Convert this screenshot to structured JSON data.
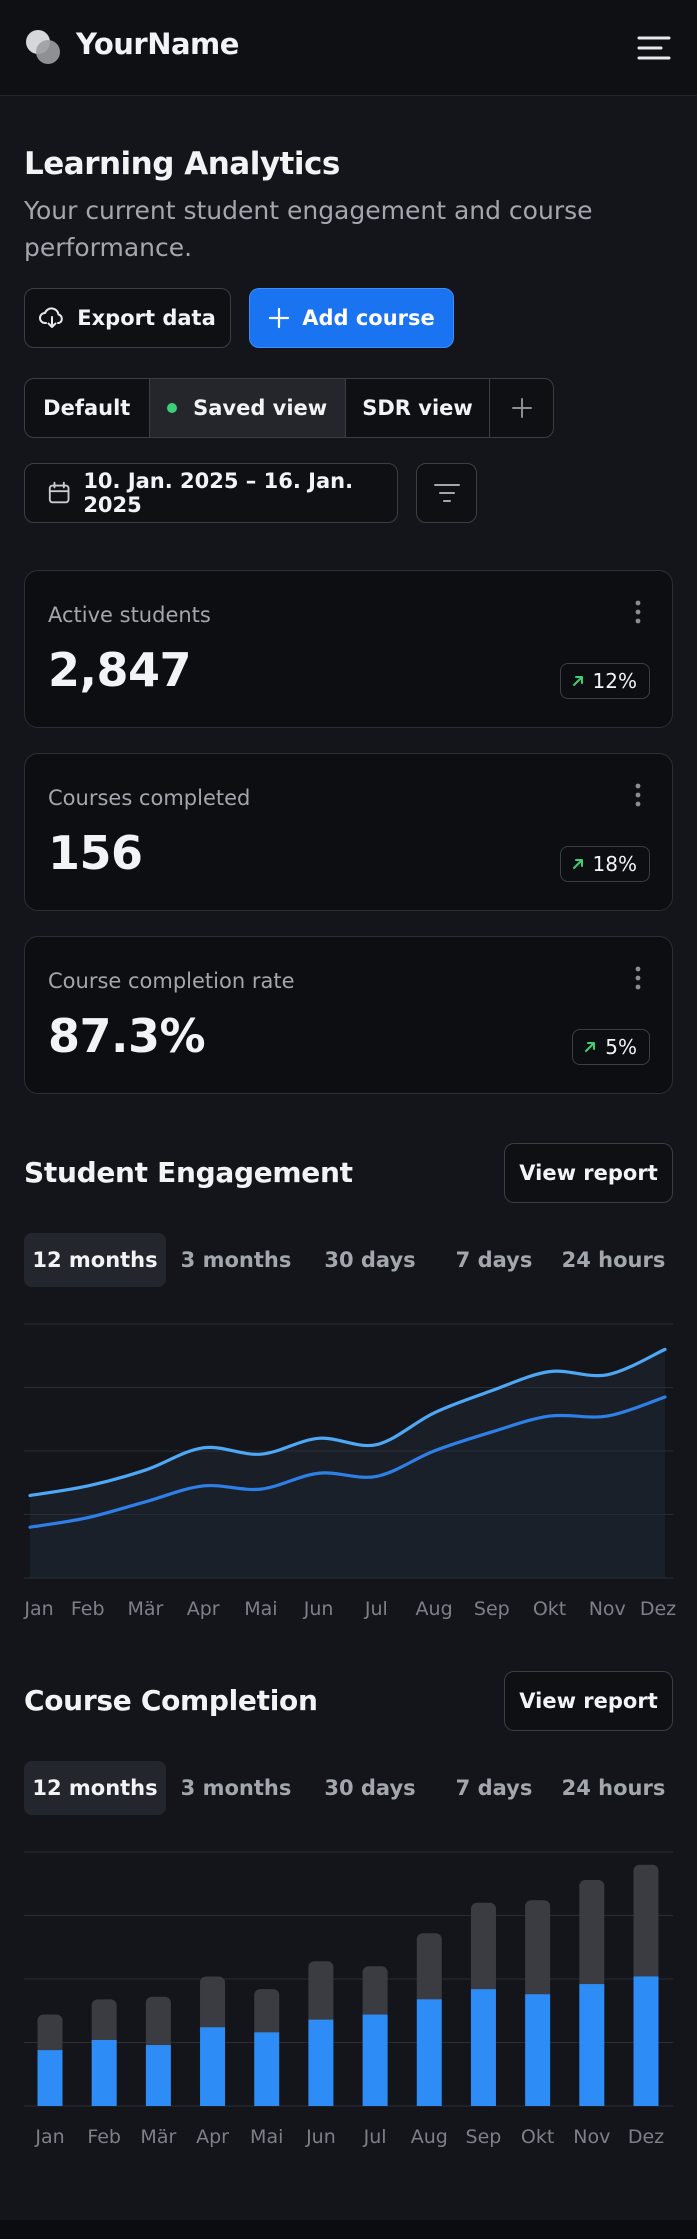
{
  "header": {
    "brand": "YourName",
    "logo_icon": "overlapping-circles-logo",
    "menu_icon": "menu-icon"
  },
  "page": {
    "title": "Learning Analytics",
    "subtitle": "Your current student engagement and course performance."
  },
  "actions": {
    "export_label": "Export data",
    "add_label": "Add course"
  },
  "views": {
    "items": [
      "Default",
      "Saved view",
      "SDR view"
    ],
    "active": "Saved view",
    "add_icon": "plus-icon"
  },
  "date_range": {
    "label": "10. Jan. 2025 – 16. Jan. 2025",
    "filter_icon": "filter-lines-icon"
  },
  "metrics": [
    {
      "label": "Active students",
      "value": "2,847",
      "change": "12%",
      "trend": "up"
    },
    {
      "label": "Courses completed",
      "value": "156",
      "change": "18%",
      "trend": "up"
    },
    {
      "label": "Course completion rate",
      "value": "87.3%",
      "change": "5%",
      "trend": "up"
    }
  ],
  "engagement": {
    "title": "Student Engagement",
    "report_label": "View report",
    "tabs": [
      "12 months",
      "3 months",
      "30 days",
      "7 days",
      "24 hours"
    ],
    "active_tab": "12 months"
  },
  "completion": {
    "title": "Course Completion",
    "report_label": "View report",
    "tabs": [
      "12 months",
      "3 months",
      "30 days",
      "7 days",
      "24 hours"
    ],
    "active_tab": "12 months"
  },
  "colors": {
    "accent": "#1a74f2",
    "line_light": "#4ea8f5",
    "line_dark": "#2f7fe8",
    "bar_top": "#3a3c42",
    "positive": "#3ecf76"
  },
  "chart_data": [
    {
      "type": "line",
      "x": [
        "Jan",
        "Feb",
        "Mär",
        "Apr",
        "Mai",
        "Jun",
        "Jul",
        "Aug",
        "Sep",
        "Okt",
        "Nov",
        "Dez"
      ],
      "series": [
        {
          "values": [
            26,
            29,
            34,
            41,
            39,
            44,
            42,
            52,
            59,
            65,
            64,
            72
          ]
        },
        {
          "values": [
            16,
            19,
            24,
            29,
            28,
            33,
            32,
            40,
            46,
            51,
            51,
            57
          ]
        }
      ],
      "ylim": [
        0,
        80
      ],
      "grid": true
    },
    {
      "type": "bar",
      "categories": [
        "Jan",
        "Feb",
        "Mär",
        "Apr",
        "Mai",
        "Jun",
        "Jul",
        "Aug",
        "Sep",
        "Okt",
        "Nov",
        "Dez"
      ],
      "series": [
        {
          "values": [
            22,
            26,
            24,
            31,
            29,
            34,
            36,
            42,
            46,
            44,
            48,
            51
          ]
        },
        {
          "values": [
            14,
            16,
            19,
            20,
            17,
            23,
            19,
            26,
            34,
            37,
            41,
            44
          ]
        }
      ],
      "stacked": true,
      "ylim": [
        0,
        100
      ],
      "grid": true
    }
  ]
}
